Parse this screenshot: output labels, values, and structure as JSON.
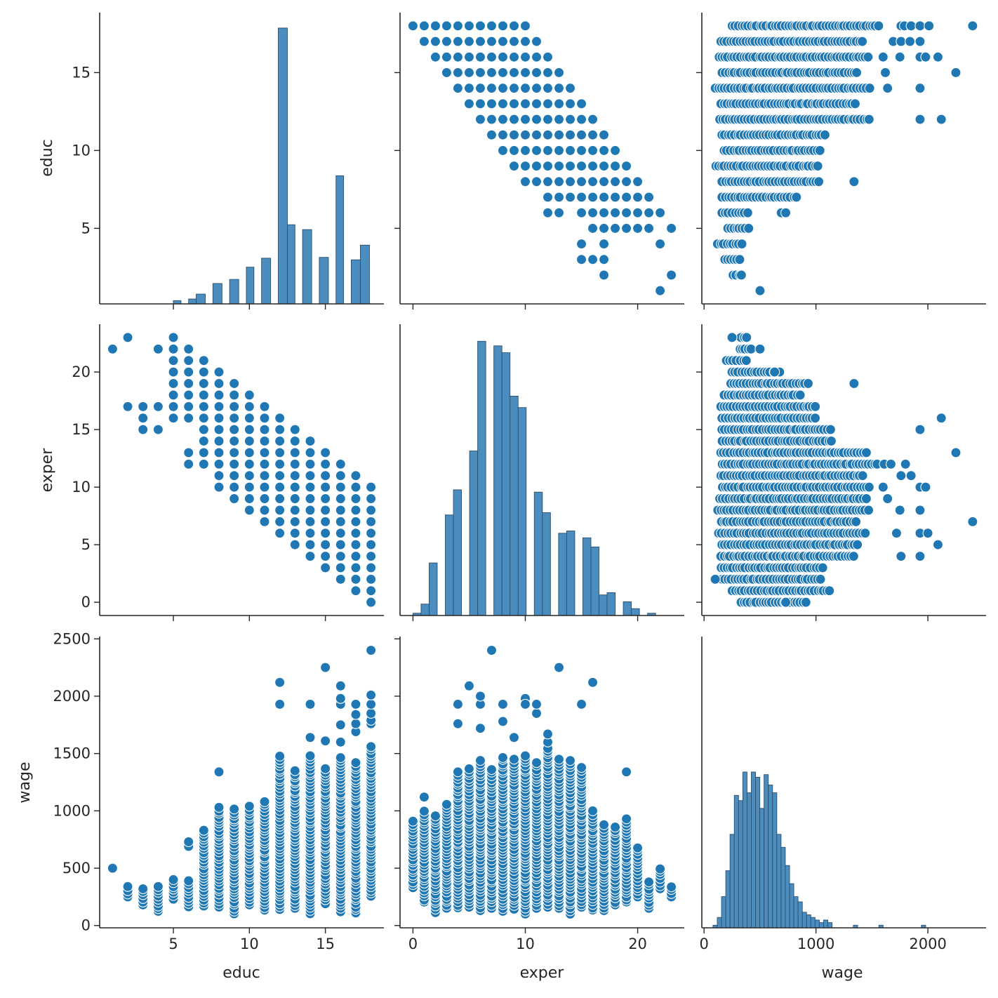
{
  "figure": {
    "variables": [
      "educ",
      "exper",
      "wage"
    ],
    "colors": {
      "marker": "#1f77b4",
      "bar": "#4c8dbf",
      "bar_edge": "#2b4f6e"
    },
    "axes": {
      "educ": {
        "ticks": [
          5,
          10,
          15
        ],
        "lim": [
          0.15,
          18.85
        ]
      },
      "exper": {
        "ticks": [
          0,
          10,
          20
        ],
        "lim": [
          -1.15,
          24.15
        ]
      },
      "wage": {
        "ticks": [
          0,
          1000,
          2000
        ],
        "lim": [
          -20,
          2520
        ]
      }
    },
    "row_axes": {
      "educ": {
        "ticks": [
          5,
          10,
          15
        ],
        "lim": [
          0.15,
          18.85
        ]
      },
      "exper": {
        "ticks": [
          0,
          5,
          10,
          15,
          20
        ],
        "lim": [
          -1.15,
          24.15
        ]
      },
      "wage": {
        "ticks": [
          0,
          500,
          1000,
          1500,
          2000,
          2500
        ],
        "lim": [
          -20,
          2520
        ]
      }
    }
  },
  "chart_data": [
    {
      "type": "bar",
      "panel": "educ-hist",
      "xlabel": "",
      "ylabel": "educ",
      "bins": [
        [
          3.9,
          4.5,
          0
        ],
        [
          5.0,
          5.5,
          4
        ],
        [
          6.0,
          6.5,
          6
        ],
        [
          6.5,
          7.1,
          12
        ],
        [
          7.6,
          8.2,
          25
        ],
        [
          8.7,
          9.3,
          30
        ],
        [
          9.8,
          10.3,
          45
        ],
        [
          10.8,
          11.4,
          56
        ],
        [
          11.9,
          12.5,
          338
        ],
        [
          12.5,
          13.0,
          97
        ],
        [
          13.5,
          14.1,
          91
        ],
        [
          14.6,
          15.2,
          57
        ],
        [
          15.7,
          16.2,
          157
        ],
        [
          16.7,
          17.3,
          54
        ],
        [
          17.3,
          17.9,
          72
        ]
      ],
      "ylim": [
        0,
        350
      ]
    },
    {
      "type": "bar",
      "panel": "exper-hist",
      "xlabel": "",
      "ylabel": "",
      "bins": [
        [
          0,
          0.72,
          1
        ],
        [
          0.72,
          1.44,
          5
        ],
        [
          1.44,
          2.16,
          23
        ],
        [
          2.88,
          3.6,
          44
        ],
        [
          3.6,
          4.32,
          55
        ],
        [
          4.32,
          5.04,
          0
        ],
        [
          5.04,
          5.76,
          72
        ],
        [
          5.76,
          6.48,
          120
        ],
        [
          6.48,
          7.2,
          0
        ],
        [
          7.2,
          7.92,
          118
        ],
        [
          7.92,
          8.64,
          115
        ],
        [
          8.64,
          9.36,
          96
        ],
        [
          9.36,
          10.08,
          91
        ],
        [
          10.08,
          10.8,
          0
        ],
        [
          10.8,
          11.52,
          54
        ],
        [
          11.52,
          12.24,
          45
        ],
        [
          12.96,
          13.68,
          36
        ],
        [
          13.68,
          14.4,
          37
        ],
        [
          14.4,
          15.12,
          0
        ],
        [
          15.12,
          15.84,
          34
        ],
        [
          15.84,
          16.56,
          30
        ],
        [
          16.56,
          17.28,
          9
        ],
        [
          17.28,
          18.0,
          10
        ],
        [
          18.72,
          19.44,
          6
        ],
        [
          19.44,
          20.16,
          3
        ],
        [
          20.88,
          21.6,
          1
        ]
      ],
      "ylim": [
        0,
        125
      ]
    },
    {
      "type": "bar",
      "panel": "wage-hist",
      "xlabel": "",
      "ylabel": "",
      "bin_start": 80,
      "bin_width": 38,
      "counts": [
        1,
        4,
        12,
        22,
        36,
        51,
        49,
        60,
        52,
        60,
        58,
        46,
        59,
        55,
        52,
        36,
        31,
        24,
        17,
        12,
        10,
        6,
        5,
        4,
        3,
        2,
        3,
        2,
        0,
        0,
        0,
        0,
        0,
        1,
        0,
        0,
        0,
        0,
        0,
        1,
        0,
        0,
        0,
        0,
        0,
        0,
        0,
        0,
        0,
        1
      ],
      "ylim": [
        0,
        110
      ]
    },
    {
      "type": "scatter",
      "panel": "educ-vs-exper",
      "x_var": "exper",
      "y_var": "educ",
      "rule": "for each educ level, exper runs over integer range [lo, hi]",
      "ranges": [
        [
          18,
          0,
          10
        ],
        [
          17,
          1,
          11
        ],
        [
          16,
          2,
          12
        ],
        [
          15,
          3,
          13
        ],
        [
          14,
          4,
          14
        ],
        [
          13,
          5,
          15
        ],
        [
          12,
          6,
          16
        ],
        [
          11,
          7,
          17
        ],
        [
          10,
          8,
          18
        ],
        [
          9,
          9,
          19
        ],
        [
          8,
          10,
          20
        ],
        [
          7,
          12,
          21
        ],
        [
          6,
          12,
          13
        ],
        [
          6,
          15,
          22
        ],
        [
          5,
          16,
          21
        ],
        [
          5,
          23,
          23
        ],
        [
          4,
          15,
          15
        ],
        [
          4,
          17,
          17
        ],
        [
          4,
          22,
          22
        ],
        [
          3,
          15,
          17
        ],
        [
          2,
          17,
          17
        ],
        [
          2,
          23,
          23
        ],
        [
          1,
          22,
          22
        ]
      ]
    },
    {
      "type": "scatter",
      "panel": "exper-vs-educ",
      "x_var": "educ",
      "y_var": "exper",
      "rule": "for each educ level, exper runs over integer range [lo, hi]",
      "ranges": [
        [
          18,
          0,
          10
        ],
        [
          17,
          1,
          11
        ],
        [
          16,
          2,
          12
        ],
        [
          15,
          3,
          13
        ],
        [
          14,
          4,
          14
        ],
        [
          13,
          5,
          15
        ],
        [
          12,
          6,
          16
        ],
        [
          11,
          7,
          17
        ],
        [
          10,
          8,
          18
        ],
        [
          9,
          9,
          19
        ],
        [
          8,
          10,
          20
        ],
        [
          7,
          12,
          21
        ],
        [
          6,
          12,
          13
        ],
        [
          6,
          16,
          22
        ],
        [
          5,
          16,
          23
        ],
        [
          4,
          15,
          15
        ],
        [
          4,
          17,
          17
        ],
        [
          4,
          22,
          22
        ],
        [
          3,
          15,
          17
        ],
        [
          2,
          17,
          17
        ],
        [
          2,
          23,
          23
        ],
        [
          1,
          22,
          22
        ]
      ]
    },
    {
      "type": "scatter",
      "panel": "educ-vs-wage",
      "x_var": "wage",
      "y_var": "educ",
      "rule": "for each educ level, wage values are densely spread over [lo, hi]; extra lists individual outliers",
      "ranges": [
        [
          18,
          250,
          1560
        ],
        [
          17,
          150,
          1420
        ],
        [
          16,
          130,
          1470
        ],
        [
          15,
          160,
          1370
        ],
        [
          14,
          100,
          1480
        ],
        [
          13,
          150,
          1350
        ],
        [
          12,
          140,
          1480
        ],
        [
          11,
          160,
          1080
        ],
        [
          10,
          180,
          1040
        ],
        [
          9,
          100,
          1020
        ],
        [
          8,
          160,
          1030
        ],
        [
          7,
          160,
          830
        ],
        [
          6,
          160,
          390
        ],
        [
          5,
          210,
          400
        ],
        [
          4,
          120,
          340
        ],
        [
          3,
          180,
          320
        ],
        [
          2,
          260,
          340
        ],
        [
          1,
          500,
          500
        ]
      ],
      "extra": [
        [
          18,
          1760
        ],
        [
          18,
          1790
        ],
        [
          18,
          1850
        ],
        [
          18,
          1930
        ],
        [
          18,
          2010
        ],
        [
          18,
          2400
        ],
        [
          17,
          1690
        ],
        [
          17,
          1760
        ],
        [
          17,
          1840
        ],
        [
          17,
          1930
        ],
        [
          16,
          1600
        ],
        [
          16,
          1750
        ],
        [
          16,
          1930
        ],
        [
          16,
          1980
        ],
        [
          16,
          2090
        ],
        [
          15,
          1620
        ],
        [
          15,
          2250
        ],
        [
          14,
          1640
        ],
        [
          14,
          1930
        ],
        [
          13,
          1350
        ],
        [
          12,
          1930
        ],
        [
          12,
          2120
        ],
        [
          8,
          1340
        ],
        [
          6,
          690
        ],
        [
          6,
          730
        ]
      ]
    },
    {
      "type": "scatter",
      "panel": "exper-vs-wage",
      "x_var": "wage",
      "y_var": "exper",
      "rule": "for each exper level, wage values are densely spread over [lo, hi]; extra lists individual outliers",
      "ranges": [
        [
          23,
          330,
          380
        ],
        [
          22,
          320,
          420
        ],
        [
          21,
          200,
          380
        ],
        [
          20,
          250,
          680
        ],
        [
          19,
          240,
          930
        ],
        [
          18,
          180,
          860
        ],
        [
          17,
          150,
          1000
        ],
        [
          16,
          160,
          1000
        ],
        [
          15,
          160,
          1130
        ],
        [
          14,
          160,
          1140
        ],
        [
          13,
          150,
          1450
        ],
        [
          12,
          160,
          1550
        ],
        [
          11,
          150,
          1420
        ],
        [
          10,
          160,
          1480
        ],
        [
          9,
          140,
          1450
        ],
        [
          8,
          120,
          1470
        ],
        [
          7,
          150,
          1360
        ],
        [
          6,
          130,
          1440
        ],
        [
          5,
          160,
          1370
        ],
        [
          4,
          150,
          1340
        ],
        [
          3,
          150,
          1060
        ],
        [
          2,
          160,
          1040
        ],
        [
          1,
          250,
          1100
        ],
        [
          0,
          330,
          910
        ]
      ],
      "extra": [
        [
          23,
          250
        ],
        [
          22,
          500
        ],
        [
          20,
          630
        ],
        [
          19,
          1340
        ],
        [
          16,
          2120
        ],
        [
          15,
          1930
        ],
        [
          13,
          2250
        ],
        [
          12,
          1610
        ],
        [
          12,
          1670
        ],
        [
          12,
          1800
        ],
        [
          11,
          1760
        ],
        [
          11,
          1850
        ],
        [
          10,
          1600
        ],
        [
          10,
          1930
        ],
        [
          10,
          1980
        ],
        [
          9,
          1640
        ],
        [
          8,
          1750
        ],
        [
          8,
          1930
        ],
        [
          7,
          2400
        ],
        [
          6,
          1720
        ],
        [
          6,
          1930
        ],
        [
          6,
          2000
        ],
        [
          5,
          2090
        ],
        [
          4,
          1760
        ],
        [
          4,
          1930
        ],
        [
          2,
          100
        ],
        [
          1,
          1120
        ],
        [
          0,
          730
        ]
      ]
    },
    {
      "type": "scatter",
      "panel": "wage-vs-educ",
      "x_var": "educ",
      "y_var": "wage",
      "rule": "for each educ level, wage values are densely spread over [lo, hi]; extra lists individual outliers",
      "ranges": [
        [
          18,
          250,
          1560
        ],
        [
          17,
          110,
          1420
        ],
        [
          16,
          120,
          1470
        ],
        [
          15,
          190,
          1370
        ],
        [
          14,
          100,
          1480
        ],
        [
          13,
          150,
          1350
        ],
        [
          12,
          140,
          1480
        ],
        [
          11,
          130,
          1080
        ],
        [
          10,
          180,
          1040
        ],
        [
          9,
          100,
          1020
        ],
        [
          8,
          160,
          1030
        ],
        [
          7,
          170,
          830
        ],
        [
          6,
          160,
          390
        ],
        [
          5,
          230,
          400
        ],
        [
          4,
          120,
          340
        ],
        [
          3,
          180,
          320
        ],
        [
          2,
          250,
          340
        ],
        [
          1,
          500,
          500
        ]
      ],
      "extra": [
        [
          18,
          1760
        ],
        [
          18,
          1790
        ],
        [
          18,
          1850
        ],
        [
          18,
          1930
        ],
        [
          18,
          2010
        ],
        [
          18,
          2400
        ],
        [
          17,
          1690
        ],
        [
          17,
          1760
        ],
        [
          17,
          1840
        ],
        [
          17,
          1930
        ],
        [
          16,
          1600
        ],
        [
          16,
          1750
        ],
        [
          16,
          1930
        ],
        [
          16,
          1980
        ],
        [
          16,
          2090
        ],
        [
          15,
          1610
        ],
        [
          15,
          2250
        ],
        [
          14,
          1640
        ],
        [
          14,
          1930
        ],
        [
          12,
          1930
        ],
        [
          12,
          2120
        ],
        [
          8,
          1340
        ],
        [
          6,
          690
        ],
        [
          6,
          730
        ]
      ]
    },
    {
      "type": "scatter",
      "panel": "wage-vs-exper",
      "x_var": "exper",
      "y_var": "wage",
      "rule": "for each exper level, wage values are densely spread over [lo, hi]; extra lists individual outliers",
      "ranges": [
        [
          0,
          330,
          910
        ],
        [
          1,
          200,
          1000
        ],
        [
          2,
          110,
          960
        ],
        [
          3,
          150,
          1060
        ],
        [
          4,
          150,
          1340
        ],
        [
          5,
          160,
          1370
        ],
        [
          6,
          130,
          1440
        ],
        [
          7,
          150,
          1360
        ],
        [
          8,
          120,
          1470
        ],
        [
          9,
          140,
          1450
        ],
        [
          10,
          100,
          1480
        ],
        [
          11,
          150,
          1420
        ],
        [
          12,
          160,
          1550
        ],
        [
          13,
          150,
          1450
        ],
        [
          14,
          100,
          1440
        ],
        [
          15,
          160,
          1380
        ],
        [
          16,
          130,
          1000
        ],
        [
          17,
          130,
          880
        ],
        [
          18,
          180,
          860
        ],
        [
          19,
          200,
          930
        ],
        [
          20,
          250,
          680
        ],
        [
          21,
          150,
          380
        ],
        [
          22,
          320,
          500
        ],
        [
          23,
          250,
          340
        ]
      ],
      "extra": [
        [
          1,
          1120
        ],
        [
          4,
          1760
        ],
        [
          4,
          1930
        ],
        [
          5,
          2090
        ],
        [
          6,
          1720
        ],
        [
          6,
          1930
        ],
        [
          6,
          2000
        ],
        [
          7,
          2400
        ],
        [
          8,
          1780
        ],
        [
          8,
          1930
        ],
        [
          9,
          1640
        ],
        [
          10,
          1980
        ],
        [
          10,
          1930
        ],
        [
          11,
          1850
        ],
        [
          11,
          1930
        ],
        [
          12,
          1600
        ],
        [
          12,
          1670
        ],
        [
          13,
          2250
        ],
        [
          15,
          1930
        ],
        [
          16,
          2120
        ],
        [
          19,
          1340
        ]
      ]
    }
  ]
}
